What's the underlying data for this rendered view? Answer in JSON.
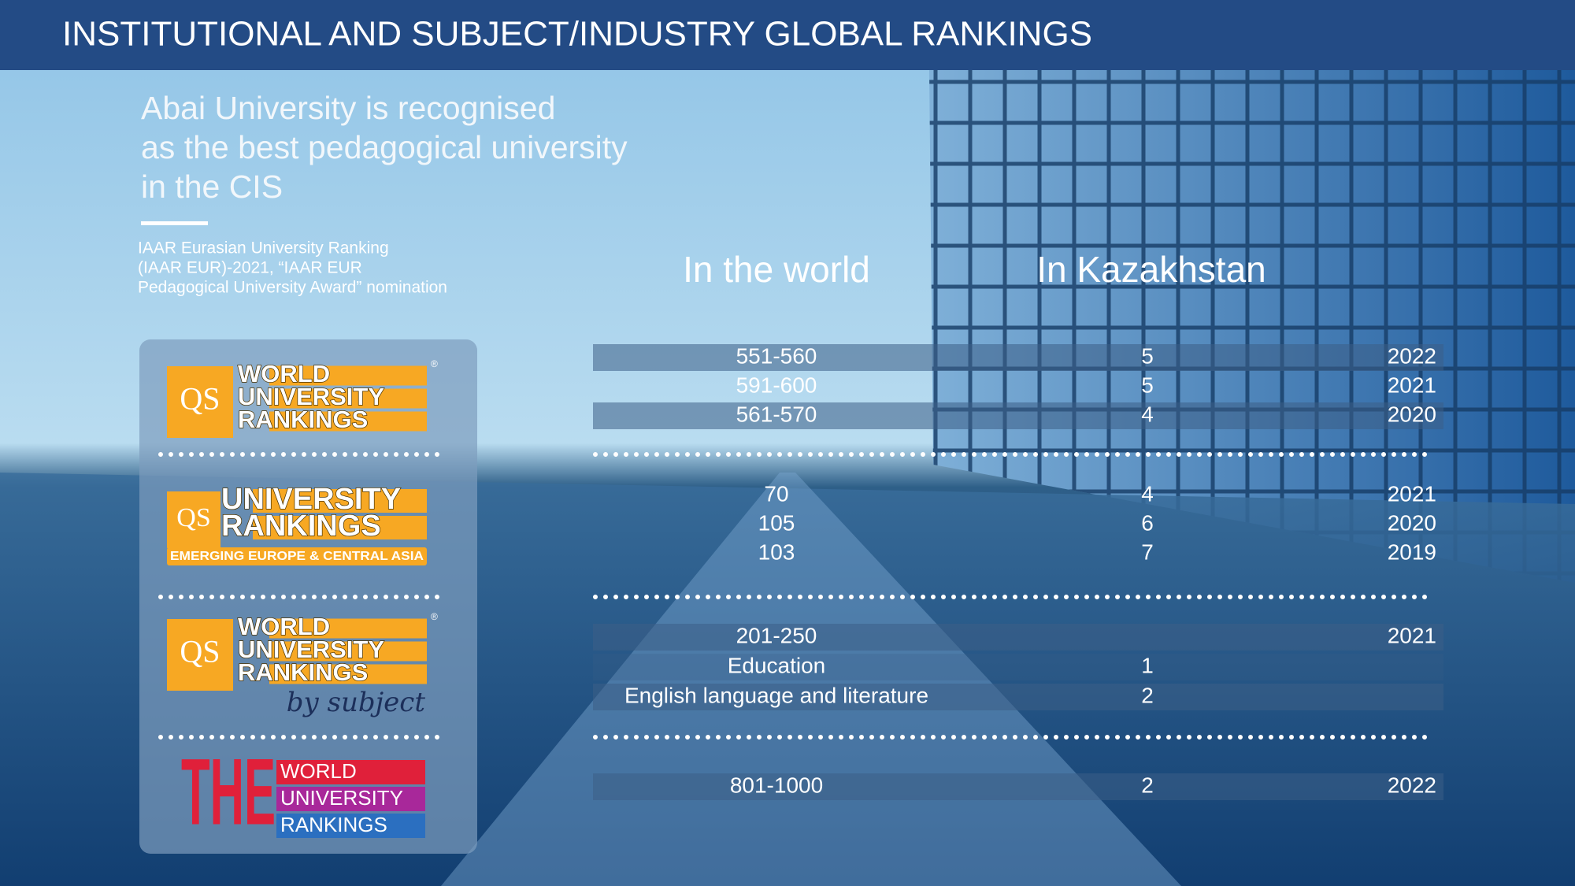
{
  "header": {
    "title": "INSTITUTIONAL AND SUBJECT/INDUSTRY GLOBAL RANKINGS"
  },
  "intro": {
    "heading": [
      "Abai University is recognised",
      "as the best pedagogical university",
      "in the CIS"
    ],
    "note": [
      "IAAR Eurasian University Ranking",
      "(IAAR EUR)-2021, “IAAR EUR",
      "Pedagogical University Award” nomination"
    ]
  },
  "columns": [
    "In the world",
    "In Kazakhstan"
  ],
  "rankings": [
    {
      "logo": {
        "mark": "QS",
        "lines": [
          "WORLD",
          "UNIVERSITY",
          "RANKINGS"
        ],
        "symbol": "®"
      },
      "rows": [
        {
          "world": "551-560",
          "kazakhstan": 5,
          "year": 2022
        },
        {
          "world": "591-600",
          "kazakhstan": 5,
          "year": 2021
        },
        {
          "world": "561-570",
          "kazakhstan": 4,
          "year": 2020
        }
      ]
    },
    {
      "logo": {
        "mark": "QS",
        "lines": [
          "UNIVERSITY",
          "RANKINGS"
        ],
        "tagline": "EMERGING EUROPE & CENTRAL ASIA"
      },
      "rows": [
        {
          "world": 70,
          "kazakhstan": 4,
          "year": 2021
        },
        {
          "world": 105,
          "kazakhstan": 6,
          "year": 2020
        },
        {
          "world": 103,
          "kazakhstan": 7,
          "year": 2019
        }
      ]
    },
    {
      "logo": {
        "mark": "QS",
        "lines": [
          "WORLD",
          "UNIVERSITY",
          "RANKINGS"
        ],
        "symbol": "®",
        "tagline": "by subject"
      },
      "rows": [
        {
          "world": "201-250",
          "year": 2021
        },
        {
          "world": "Education",
          "kazakhstan": 1
        },
        {
          "world": "English language and literature",
          "kazakhstan": 2
        }
      ]
    },
    {
      "logo": {
        "mark": "THE",
        "lines": [
          "WORLD",
          "UNIVERSITY",
          "RANKINGS"
        ]
      },
      "rows": [
        {
          "world": "801-1000",
          "kazakhstan": 2,
          "year": 2022
        }
      ]
    }
  ]
}
